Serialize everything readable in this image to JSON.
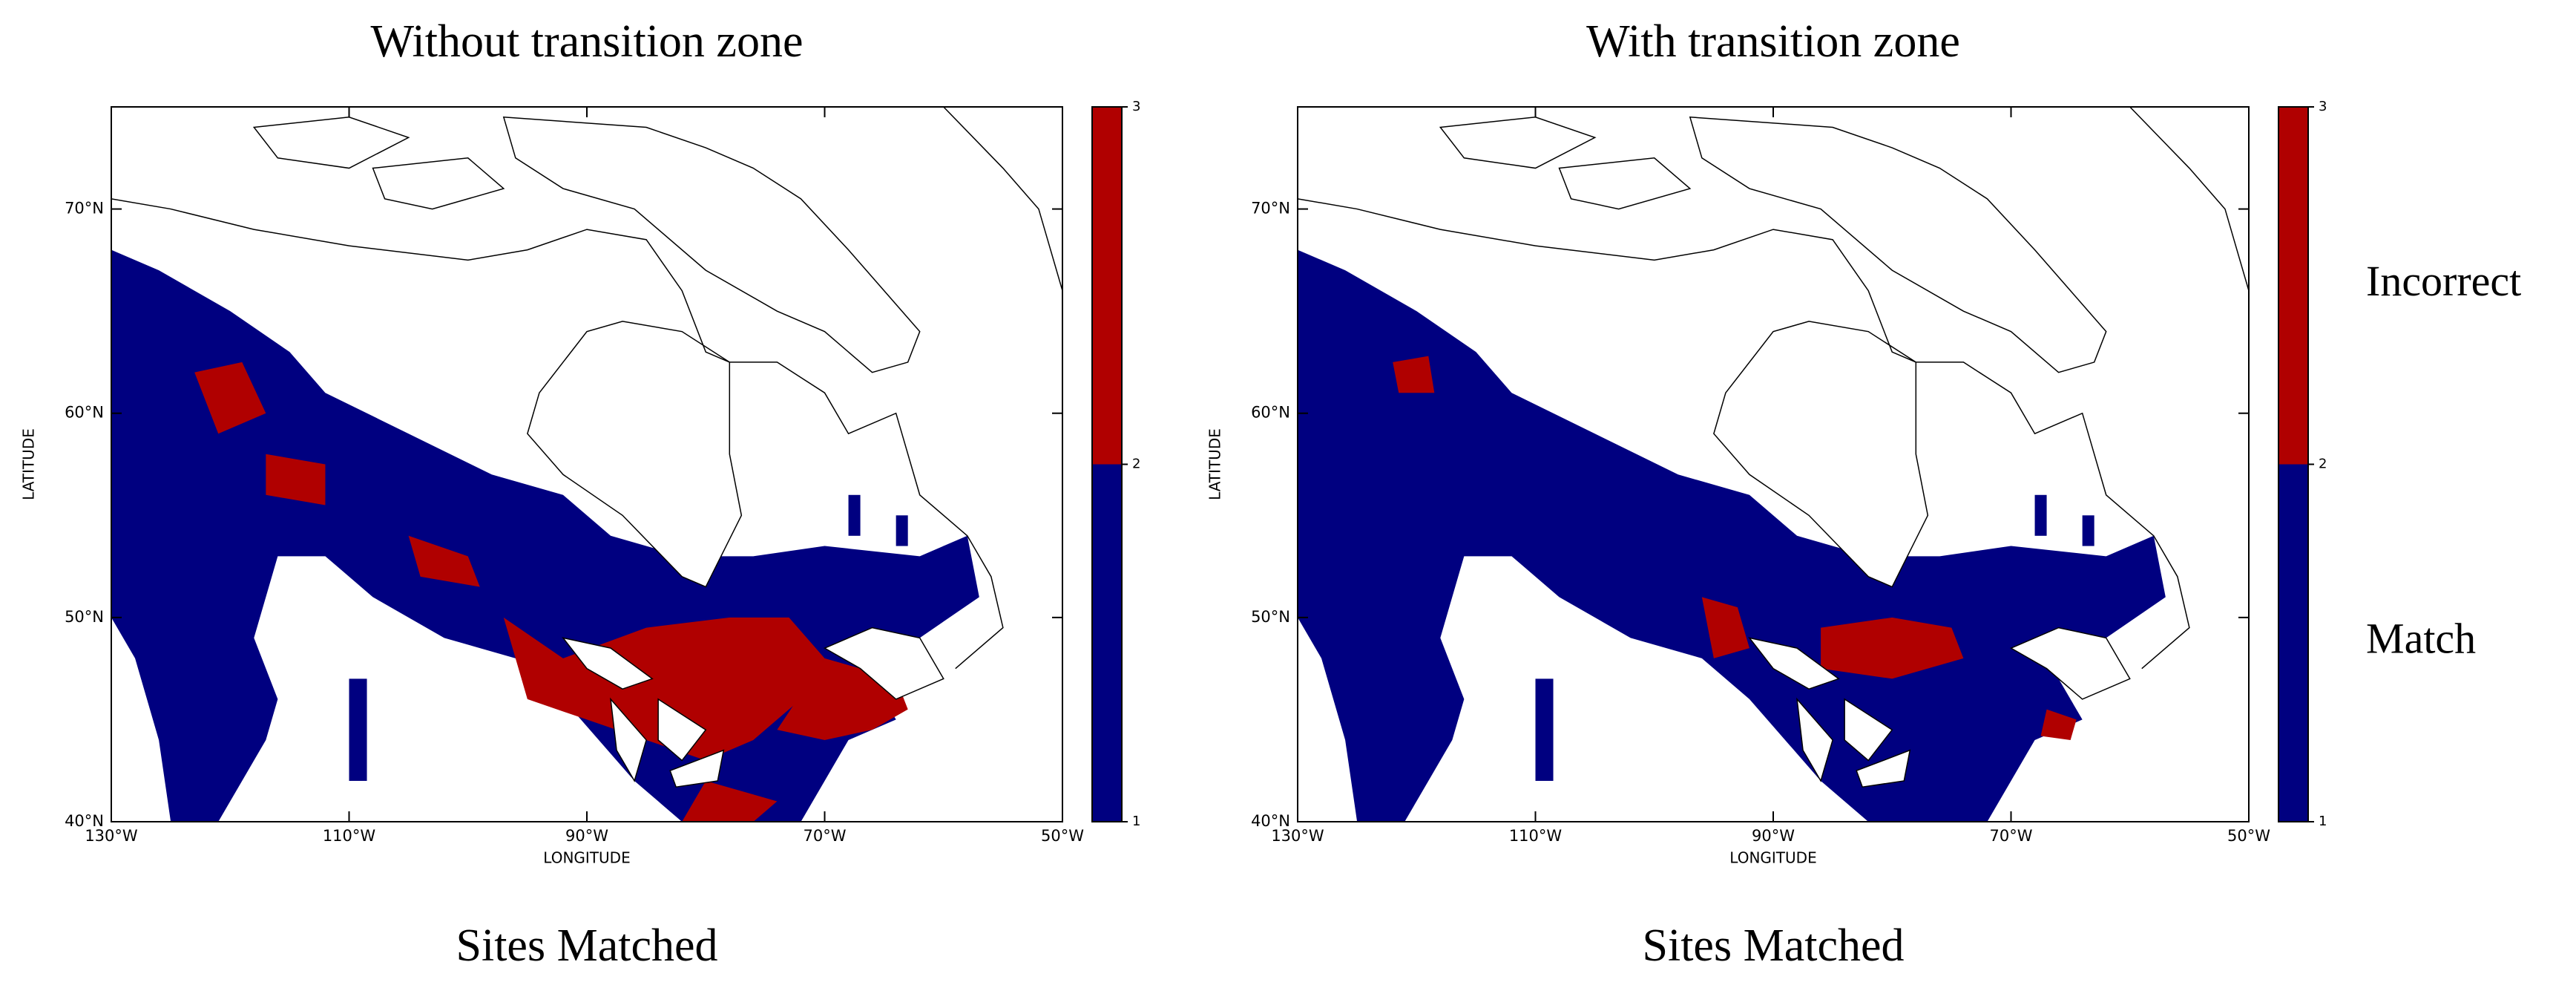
{
  "panels": [
    {
      "title": "Without transition zone",
      "caption": "Sites Matched",
      "x_axis": {
        "label": "LONGITUDE",
        "range": [
          -130,
          -50
        ],
        "ticks": [
          {
            "value": -130,
            "label": "130°W"
          },
          {
            "value": -110,
            "label": "110°W"
          },
          {
            "value": -90,
            "label": "90°W"
          },
          {
            "value": -70,
            "label": "70°W"
          },
          {
            "value": -50,
            "label": "50°W"
          }
        ]
      },
      "y_axis": {
        "label": "LATITUDE",
        "range": [
          40,
          75
        ],
        "ticks": [
          {
            "value": 40,
            "label": "40°N"
          },
          {
            "value": 50,
            "label": "50°N"
          },
          {
            "value": 60,
            "label": "60°N"
          },
          {
            "value": 70,
            "label": "70°N"
          }
        ]
      },
      "colorbar": {
        "range": [
          1,
          3
        ],
        "ticks": [
          1,
          2,
          3
        ],
        "colors": [
          "#000080",
          "#b00000"
        ]
      }
    },
    {
      "title": "With transition zone",
      "caption": "Sites Matched",
      "x_axis": {
        "label": "LONGITUDE",
        "range": [
          -130,
          -50
        ],
        "ticks": [
          {
            "value": -130,
            "label": "130°W"
          },
          {
            "value": -110,
            "label": "110°W"
          },
          {
            "value": -90,
            "label": "90°W"
          },
          {
            "value": -70,
            "label": "70°W"
          },
          {
            "value": -50,
            "label": "50°W"
          }
        ]
      },
      "y_axis": {
        "label": "LATITUDE",
        "range": [
          40,
          75
        ],
        "ticks": [
          {
            "value": 40,
            "label": "40°N"
          },
          {
            "value": 50,
            "label": "50°N"
          },
          {
            "value": 60,
            "label": "60°N"
          },
          {
            "value": 70,
            "label": "70°N"
          }
        ]
      },
      "colorbar": {
        "range": [
          1,
          3
        ],
        "ticks": [
          1,
          2,
          3
        ],
        "colors": [
          "#000080",
          "#b00000"
        ],
        "labels": [
          "Match",
          "Incorrect"
        ]
      }
    }
  ]
}
